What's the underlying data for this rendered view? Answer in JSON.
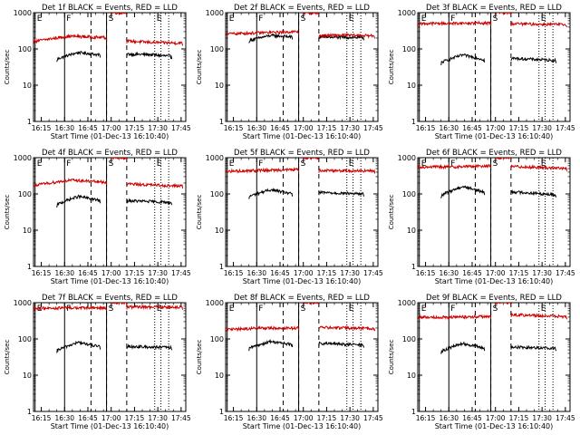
{
  "chart_data": [
    {
      "type": "line",
      "title": "Det 1f BLACK = Events, RED = LLD",
      "xlabel": "Start Time (01-Dec-13 16:10:40)",
      "ylabel": "Counts/sec",
      "yscale": "log",
      "ylim": [
        1,
        1000
      ],
      "xlim": [
        "16:10",
        "17:48"
      ],
      "x_ticks": [
        "16:15",
        "16:30",
        "16:45",
        "17:00",
        "17:15",
        "17:30",
        "17:45"
      ],
      "y_ticks": [
        "1",
        "10",
        "100",
        "1000"
      ],
      "markers": [
        {
          "label": "E",
          "time": "16:11"
        },
        {
          "label": "F",
          "time": "16:30"
        },
        {
          "label": "S",
          "time": "16:57"
        },
        {
          "label": "E",
          "time": "17:28"
        }
      ],
      "series": [
        {
          "color": "#000000",
          "segments": [
            {
              "start": "16:25",
              "end": "16:53",
              "levels": [
                52,
                80,
                68
              ]
            },
            {
              "start": "17:10",
              "end": "17:39",
              "levels": [
                72,
                70,
                62
              ]
            }
          ]
        },
        {
          "color": "#cc0000",
          "segments": [
            {
              "start": "16:10",
              "end": "16:57",
              "levels": [
                160,
                225,
                205
              ]
            },
            {
              "start": "17:00",
              "end": "17:10",
              "levels": [
                1000,
                1000
              ]
            },
            {
              "start": "17:10",
              "end": "17:46",
              "levels": [
                165,
                150,
                145
              ]
            }
          ]
        }
      ]
    },
    {
      "type": "line",
      "title": "Det 2f BLACK = Events, RED = LLD",
      "xlabel": "Start Time (01-Dec-13 16:10:40)",
      "ylabel": "Counts/sec",
      "yscale": "log",
      "ylim": [
        1,
        1000
      ],
      "xlim": [
        "16:10",
        "17:48"
      ],
      "x_ticks": [
        "16:15",
        "16:30",
        "16:45",
        "17:00",
        "17:15",
        "17:30",
        "17:45"
      ],
      "y_ticks": [
        "1",
        "10",
        "100",
        "1000"
      ],
      "markers": [
        {
          "label": "E",
          "time": "16:11"
        },
        {
          "label": "F",
          "time": "16:30"
        },
        {
          "label": "S",
          "time": "16:57"
        },
        {
          "label": "E",
          "time": "17:28"
        }
      ],
      "series": [
        {
          "color": "#000000",
          "segments": [
            {
              "start": "16:25",
              "end": "16:53",
              "levels": [
                170,
                235,
                215
              ]
            },
            {
              "start": "17:10",
              "end": "17:39",
              "levels": [
                215,
                210,
                205
              ]
            }
          ]
        },
        {
          "color": "#cc0000",
          "segments": [
            {
              "start": "16:10",
              "end": "16:57",
              "levels": [
                260,
                280,
                300
              ]
            },
            {
              "start": "17:00",
              "end": "17:10",
              "levels": [
                1000,
                1000
              ]
            },
            {
              "start": "17:10",
              "end": "17:46",
              "levels": [
                235,
                240,
                230
              ]
            }
          ]
        }
      ]
    },
    {
      "type": "line",
      "title": "Det 3f BLACK = Events, RED = LLD",
      "xlabel": "Start Time (01-Dec-13 16:10:40)",
      "ylabel": "Counts/sec",
      "yscale": "log",
      "ylim": [
        1,
        1000
      ],
      "xlim": [
        "16:10",
        "17:48"
      ],
      "x_ticks": [
        "16:15",
        "16:30",
        "16:45",
        "17:00",
        "17:15",
        "17:30",
        "17:45"
      ],
      "y_ticks": [
        "1",
        "10",
        "100",
        "1000"
      ],
      "markers": [
        {
          "label": "E",
          "time": "16:11"
        },
        {
          "label": "F",
          "time": "16:30"
        },
        {
          "label": "S",
          "time": "16:57"
        },
        {
          "label": "E",
          "time": "17:28"
        }
      ],
      "series": [
        {
          "color": "#000000",
          "segments": [
            {
              "start": "16:25",
              "end": "16:53",
              "levels": [
                42,
                68,
                50
              ]
            },
            {
              "start": "17:10",
              "end": "17:39",
              "levels": [
                55,
                52,
                48
              ]
            }
          ]
        },
        {
          "color": "#cc0000",
          "segments": [
            {
              "start": "16:10",
              "end": "16:57",
              "levels": [
                500,
                510,
                520
              ]
            },
            {
              "start": "17:00",
              "end": "17:10",
              "levels": [
                1000,
                1000
              ]
            },
            {
              "start": "17:10",
              "end": "17:46",
              "levels": [
                500,
                480,
                470
              ]
            }
          ]
        }
      ]
    },
    {
      "type": "line",
      "title": "Det 4f BLACK = Events, RED = LLD",
      "xlabel": "Start Time (01-Dec-13 16:10:40)",
      "ylabel": "Counts/sec",
      "yscale": "log",
      "ylim": [
        1,
        1000
      ],
      "xlim": [
        "16:10",
        "17:48"
      ],
      "x_ticks": [
        "16:15",
        "16:30",
        "16:45",
        "17:00",
        "17:15",
        "17:30",
        "17:45"
      ],
      "y_ticks": [
        "1",
        "10",
        "100",
        "1000"
      ],
      "markers": [
        {
          "label": "E",
          "time": "16:11"
        },
        {
          "label": "F",
          "time": "16:30"
        },
        {
          "label": "S",
          "time": "16:57"
        },
        {
          "label": "E",
          "time": "17:28"
        }
      ],
      "series": [
        {
          "color": "#000000",
          "segments": [
            {
              "start": "16:25",
              "end": "16:53",
              "levels": [
                50,
                85,
                65
              ]
            },
            {
              "start": "17:10",
              "end": "17:39",
              "levels": [
                65,
                62,
                58
              ]
            }
          ]
        },
        {
          "color": "#cc0000",
          "segments": [
            {
              "start": "16:10",
              "end": "16:57",
              "levels": [
                170,
                240,
                210
              ]
            },
            {
              "start": "17:00",
              "end": "17:10",
              "levels": [
                1000,
                1000
              ]
            },
            {
              "start": "17:10",
              "end": "17:46",
              "levels": [
                190,
                175,
                165
              ]
            }
          ]
        }
      ]
    },
    {
      "type": "line",
      "title": "Det 5f BLACK = Events, RED = LLD",
      "xlabel": "Start Time (01-Dec-13 16:10:40)",
      "ylabel": "Counts/sec",
      "yscale": "log",
      "ylim": [
        1,
        1000
      ],
      "xlim": [
        "16:10",
        "17:48"
      ],
      "x_ticks": [
        "16:15",
        "16:30",
        "16:45",
        "17:00",
        "17:15",
        "17:30",
        "17:45"
      ],
      "y_ticks": [
        "1",
        "10",
        "100",
        "1000"
      ],
      "markers": [
        {
          "label": "E",
          "time": "16:11"
        },
        {
          "label": "F",
          "time": "16:30"
        },
        {
          "label": "S",
          "time": "16:57"
        },
        {
          "label": "E",
          "time": "17:28"
        }
      ],
      "series": [
        {
          "color": "#000000",
          "segments": [
            {
              "start": "16:25",
              "end": "16:53",
              "levels": [
                85,
                130,
                100
              ]
            },
            {
              "start": "17:10",
              "end": "17:39",
              "levels": [
                110,
                105,
                100
              ]
            }
          ]
        },
        {
          "color": "#cc0000",
          "segments": [
            {
              "start": "16:10",
              "end": "16:57",
              "levels": [
                420,
                450,
                470
              ]
            },
            {
              "start": "17:00",
              "end": "17:10",
              "levels": [
                1000,
                1000
              ]
            },
            {
              "start": "17:10",
              "end": "17:46",
              "levels": [
                450,
                440,
                430
              ]
            }
          ]
        }
      ]
    },
    {
      "type": "line",
      "title": "Det 6f BLACK = Events, RED = LLD",
      "xlabel": "Start Time (01-Dec-13 16:10:40)",
      "ylabel": "Counts/sec",
      "yscale": "log",
      "ylim": [
        1,
        1000
      ],
      "xlim": [
        "16:10",
        "17:48"
      ],
      "x_ticks": [
        "16:15",
        "16:30",
        "16:45",
        "17:00",
        "17:15",
        "17:30",
        "17:45"
      ],
      "y_ticks": [
        "1",
        "10",
        "100",
        "1000"
      ],
      "markers": [
        {
          "label": "E",
          "time": "16:11"
        },
        {
          "label": "F",
          "time": "16:30"
        },
        {
          "label": "S",
          "time": "16:57"
        },
        {
          "label": "E",
          "time": "17:28"
        }
      ],
      "series": [
        {
          "color": "#000000",
          "segments": [
            {
              "start": "16:25",
              "end": "16:53",
              "levels": [
                90,
                160,
                110
              ]
            },
            {
              "start": "17:10",
              "end": "17:39",
              "levels": [
                115,
                105,
                95
              ]
            }
          ]
        },
        {
          "color": "#cc0000",
          "segments": [
            {
              "start": "16:10",
              "end": "16:57",
              "levels": [
                560,
                560,
                600
              ]
            },
            {
              "start": "17:00",
              "end": "17:10",
              "levels": [
                1000,
                1000
              ]
            },
            {
              "start": "17:10",
              "end": "17:46",
              "levels": [
                580,
                540,
                500
              ]
            }
          ]
        }
      ]
    },
    {
      "type": "line",
      "title": "Det 7f BLACK = Events, RED = LLD",
      "xlabel": "Start Time (01-Dec-13 16:10:40)",
      "ylabel": "Counts/sec",
      "yscale": "log",
      "ylim": [
        1,
        1000
      ],
      "xlim": [
        "16:10",
        "17:48"
      ],
      "x_ticks": [
        "16:15",
        "16:30",
        "16:45",
        "17:00",
        "17:15",
        "17:30",
        "17:45"
      ],
      "y_ticks": [
        "1",
        "10",
        "100",
        "1000"
      ],
      "markers": [
        {
          "label": "E",
          "time": "16:11"
        },
        {
          "label": "F",
          "time": "16:30"
        },
        {
          "label": "S",
          "time": "16:57"
        },
        {
          "label": "E",
          "time": "17:28"
        }
      ],
      "series": [
        {
          "color": "#000000",
          "segments": [
            {
              "start": "16:25",
              "end": "16:53",
              "levels": [
                48,
                80,
                60
              ]
            },
            {
              "start": "17:10",
              "end": "17:39",
              "levels": [
                62,
                60,
                58
              ]
            }
          ]
        },
        {
          "color": "#cc0000",
          "segments": [
            {
              "start": "16:10",
              "end": "16:57",
              "levels": [
                700,
                720,
                720
              ]
            },
            {
              "start": "17:00",
              "end": "17:10",
              "levels": [
                1000,
                1000
              ]
            },
            {
              "start": "17:10",
              "end": "17:46",
              "levels": [
                760,
                760,
                760
              ]
            }
          ]
        }
      ]
    },
    {
      "type": "line",
      "title": "Det 8f BLACK = Events, RED = LLD",
      "xlabel": "Start Time (01-Dec-13 16:10:40)",
      "ylabel": "Counts/sec",
      "yscale": "log",
      "ylim": [
        1,
        1000
      ],
      "xlim": [
        "16:10",
        "17:48"
      ],
      "x_ticks": [
        "16:15",
        "16:30",
        "16:45",
        "17:00",
        "17:15",
        "17:30",
        "17:45"
      ],
      "y_ticks": [
        "1",
        "10",
        "100",
        "1000"
      ],
      "markers": [
        {
          "label": "E",
          "time": "16:11"
        },
        {
          "label": "F",
          "time": "16:30"
        },
        {
          "label": "S",
          "time": "16:57"
        },
        {
          "label": "E",
          "time": "17:28"
        }
      ],
      "series": [
        {
          "color": "#000000",
          "segments": [
            {
              "start": "16:25",
              "end": "16:53",
              "levels": [
                55,
                85,
                70
              ]
            },
            {
              "start": "17:10",
              "end": "17:39",
              "levels": [
                75,
                72,
                68
              ]
            }
          ]
        },
        {
          "color": "#cc0000",
          "segments": [
            {
              "start": "16:10",
              "end": "16:57",
              "levels": [
                180,
                200,
                200
              ]
            },
            {
              "start": "17:00",
              "end": "17:10",
              "levels": [
                1000,
                1000
              ]
            },
            {
              "start": "17:10",
              "end": "17:46",
              "levels": [
                210,
                200,
                195
              ]
            }
          ]
        }
      ]
    },
    {
      "type": "line",
      "title": "Det 9f BLACK = Events, RED = LLD",
      "xlabel": "Start Time (01-Dec-13 16:10:40)",
      "ylabel": "Counts/sec",
      "yscale": "log",
      "ylim": [
        1,
        1000
      ],
      "xlim": [
        "16:10",
        "17:48"
      ],
      "x_ticks": [
        "16:15",
        "16:30",
        "16:45",
        "17:00",
        "17:15",
        "17:30",
        "17:45"
      ],
      "y_ticks": [
        "1",
        "10",
        "100",
        "1000"
      ],
      "markers": [
        {
          "label": "E",
          "time": "16:11"
        },
        {
          "label": "F",
          "time": "16:30"
        },
        {
          "label": "S",
          "time": "16:57"
        },
        {
          "label": "E",
          "time": "17:28"
        }
      ],
      "series": [
        {
          "color": "#000000",
          "segments": [
            {
              "start": "16:25",
              "end": "16:53",
              "levels": [
                45,
                75,
                55
              ]
            },
            {
              "start": "17:10",
              "end": "17:39",
              "levels": [
                60,
                58,
                55
              ]
            }
          ]
        },
        {
          "color": "#cc0000",
          "segments": [
            {
              "start": "16:10",
              "end": "16:57",
              "levels": [
                400,
                400,
                420
              ]
            },
            {
              "start": "17:00",
              "end": "17:10",
              "levels": [
                1000,
                1000
              ]
            },
            {
              "start": "17:10",
              "end": "17:46",
              "levels": [
                470,
                440,
                410
              ]
            }
          ]
        }
      ]
    }
  ]
}
